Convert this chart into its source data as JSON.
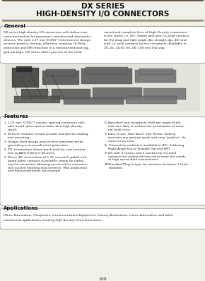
{
  "title_line1": "DX SERIES",
  "title_line2": "HIGH-DENSITY I/O CONNECTORS",
  "section_general": "General",
  "general_text_left": "DX series high-density I/O connectors with below com-\nment are perfect for tomorrow's miniaturized electronics\ndevices. The new 1.27 mm (0.050\") interconnect design\nensures positive locking, effortless coupling, Hi-Relia-\nprotection and EMI reduction in a miniaturized and rug-\nged package. DX series offers you one of the most",
  "general_text_right": "varied and complete lines of High-Density connectors\nin the world, i.e. IDC, Solder and with Co-axial contacts\nfor the plug and right angle dip, straight dip, IDC and\nwith Co-axial contacts for the receptacle. Available in\n20, 26, 34,50, 60, 80, 100 and 152 way.",
  "section_features": "Features",
  "features_left": [
    "1.27 mm (0.050\") contact spacing conserves valu-\nable board space and permits ultra-high density\nresult.",
    "Bi-level contacts ensure smooth and precise mating\nand unmating.",
    "Unique shell design assures first mate/last break\ngrounding and overall noise protection.",
    "IDC termination allows quick and low cost termina-\ntion to AWG 0.08 & 0.30 wires.",
    "Direct IDC termination of 1.27 mm pitch public and\nboard plane contacts is possible simply by replac-\ning the connector, allowing you to select a termina-\ntion system meeting requirements. Max production\nand mass production, for example."
  ],
  "features_right": [
    "Backshell and receptacle shell are made of die-\ncast zinc alloy to reduce the penetration of exter-\nnal field noise.",
    "Easy to use 'One-Touch' and 'Screw' locking\nmaintain any posture quick and easy 'positive' clo-\nsures every time.",
    "Termination method is available in IDC, Soldering,\nRight Angle Dip or Straight Dip and SMT.",
    "DX with 3 coaxes and 3 cavities for Co-axial\ncontacts are widely introduced to meet the needs\nof high speed data transmission.",
    "Standard Plug-In type for interface between 2 Units\navailable."
  ],
  "section_applications": "Applications",
  "applications_text": "Office Automation, Computers, Communications Equipment, Factory Automation, Home Automation and other\ncommercial applications needing high density interconnections.",
  "page_number": "189",
  "bg_color": "#f0efe8",
  "box_bg": "#ffffff"
}
